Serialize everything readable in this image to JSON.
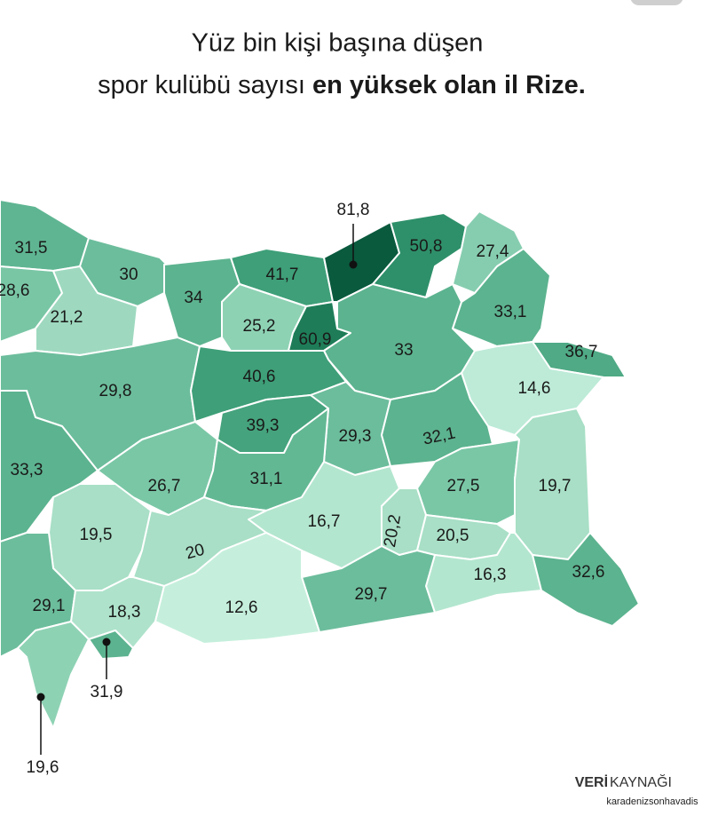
{
  "title": {
    "line1": "Yüz bin kişi başına düşen",
    "line2_regular": "spor kulübü sayısı ",
    "line2_bold": "en yüksek olan il Rize."
  },
  "regions": [
    {
      "label": "31,5",
      "color": "#5fb592"
    },
    {
      "label": "28,6",
      "color": "#79c6a5"
    },
    {
      "label": "30",
      "color": "#6cbd9c"
    },
    {
      "label": "21,2",
      "color": "#9ed9bf"
    },
    {
      "label": "34",
      "color": "#5cb38f"
    },
    {
      "label": "41,7",
      "color": "#3e9f78"
    },
    {
      "label": "81,8",
      "color": "#0a5a3e"
    },
    {
      "label": "50,8",
      "color": "#2e906a"
    },
    {
      "label": "27,4",
      "color": "#86cdb0"
    },
    {
      "label": "33,1",
      "color": "#5cb38f"
    },
    {
      "label": "25,2",
      "color": "#8ed2b4"
    },
    {
      "label": "60,9",
      "color": "#1e7d58"
    },
    {
      "label": "33",
      "color": "#5cb38f"
    },
    {
      "label": "36,7",
      "color": "#4faa85"
    },
    {
      "label": "14,6",
      "color": "#bdebd8"
    },
    {
      "label": "29,8",
      "color": "#6cbd9c"
    },
    {
      "label": "40,6",
      "color": "#3e9f78"
    },
    {
      "label": "39,3",
      "color": "#45a37d"
    },
    {
      "label": "29,3",
      "color": "#6cbd9c"
    },
    {
      "label": "32,1",
      "color": "#5cb38f"
    },
    {
      "label": "33,3",
      "color": "#5cb38f"
    },
    {
      "label": "26,7",
      "color": "#7ac7a6"
    },
    {
      "label": "31,1",
      "color": "#63b894"
    },
    {
      "label": "27,5",
      "color": "#7ac7a6"
    },
    {
      "label": "19,7",
      "color": "#a8dfc6"
    },
    {
      "label": "19,5",
      "color": "#a8dfc6"
    },
    {
      "label": "16,7",
      "color": "#b3e6cf"
    },
    {
      "label": "20,2",
      "color": "#a8dfc6"
    },
    {
      "label": "20",
      "color": "#a8dfc6"
    },
    {
      "label": "20,5",
      "color": "#a8dfc6"
    },
    {
      "label": "16,3",
      "color": "#b3e6cf"
    },
    {
      "label": "32,6",
      "color": "#5cb38f"
    },
    {
      "label": "29,7",
      "color": "#6cbd9c"
    },
    {
      "label": "29,1",
      "color": "#6cbd9c"
    },
    {
      "label": "18,3",
      "color": "#aee2cb"
    },
    {
      "label": "12,6",
      "color": "#c5efdc"
    },
    {
      "label": "31,9",
      "color": "#5cb38f"
    },
    {
      "label": "19,6",
      "color": "#8ed2b4"
    }
  ],
  "source": {
    "bold": "VERİ",
    "regular": "KAYNAĞI"
  },
  "watermark": "karadenizsonhavadis"
}
